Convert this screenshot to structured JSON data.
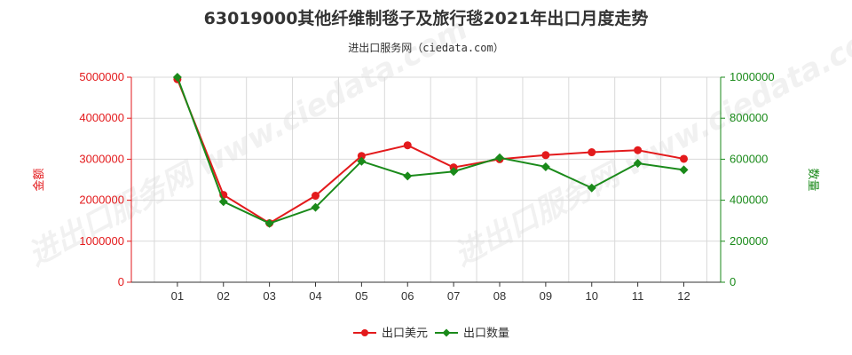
{
  "page_title": "63019000其他纤维制毯子及旅行毯2021年出口月度走势",
  "subtitle": "进出口服务网（ciedata.com）",
  "watermark": "进出口服务网 www.ciedata.com",
  "colors": {
    "left": "#e31a1c",
    "right": "#1a8a1a",
    "grid": "#d9d9d9",
    "axis": "#333333"
  },
  "chart_data": {
    "type": "line",
    "title": "63019000其他纤维制毯子及旅行毯2021年出口月度走势",
    "subtitle": "进出口服务网（ciedata.com）",
    "categories": [
      "01",
      "02",
      "03",
      "04",
      "05",
      "06",
      "07",
      "08",
      "09",
      "10",
      "11",
      "12"
    ],
    "ylabel_left": "金额",
    "ylabel_right": "数量",
    "ylim_left": [
      0,
      5000000
    ],
    "ylim_right": [
      0,
      1000000
    ],
    "yticks_left": [
      "0",
      "1000000",
      "2000000",
      "3000000",
      "4000000",
      "5000000"
    ],
    "yticks_right": [
      "0",
      "200000",
      "400000",
      "600000",
      "800000",
      "1000000"
    ],
    "grid": true,
    "legend_position": "bottom-center",
    "series": [
      {
        "name": "出口美元",
        "axis": "left",
        "color": "#e31a1c",
        "marker": "circle",
        "values": [
          4950000,
          2130000,
          1440000,
          2110000,
          3080000,
          3340000,
          2800000,
          3000000,
          3100000,
          3170000,
          3220000,
          3010000
        ]
      },
      {
        "name": "出口数量",
        "axis": "right",
        "color": "#1a8a1a",
        "marker": "diamond",
        "values": [
          1000000,
          393000,
          287000,
          365000,
          590000,
          518000,
          540000,
          607000,
          563000,
          460000,
          580000,
          548000
        ]
      }
    ]
  }
}
